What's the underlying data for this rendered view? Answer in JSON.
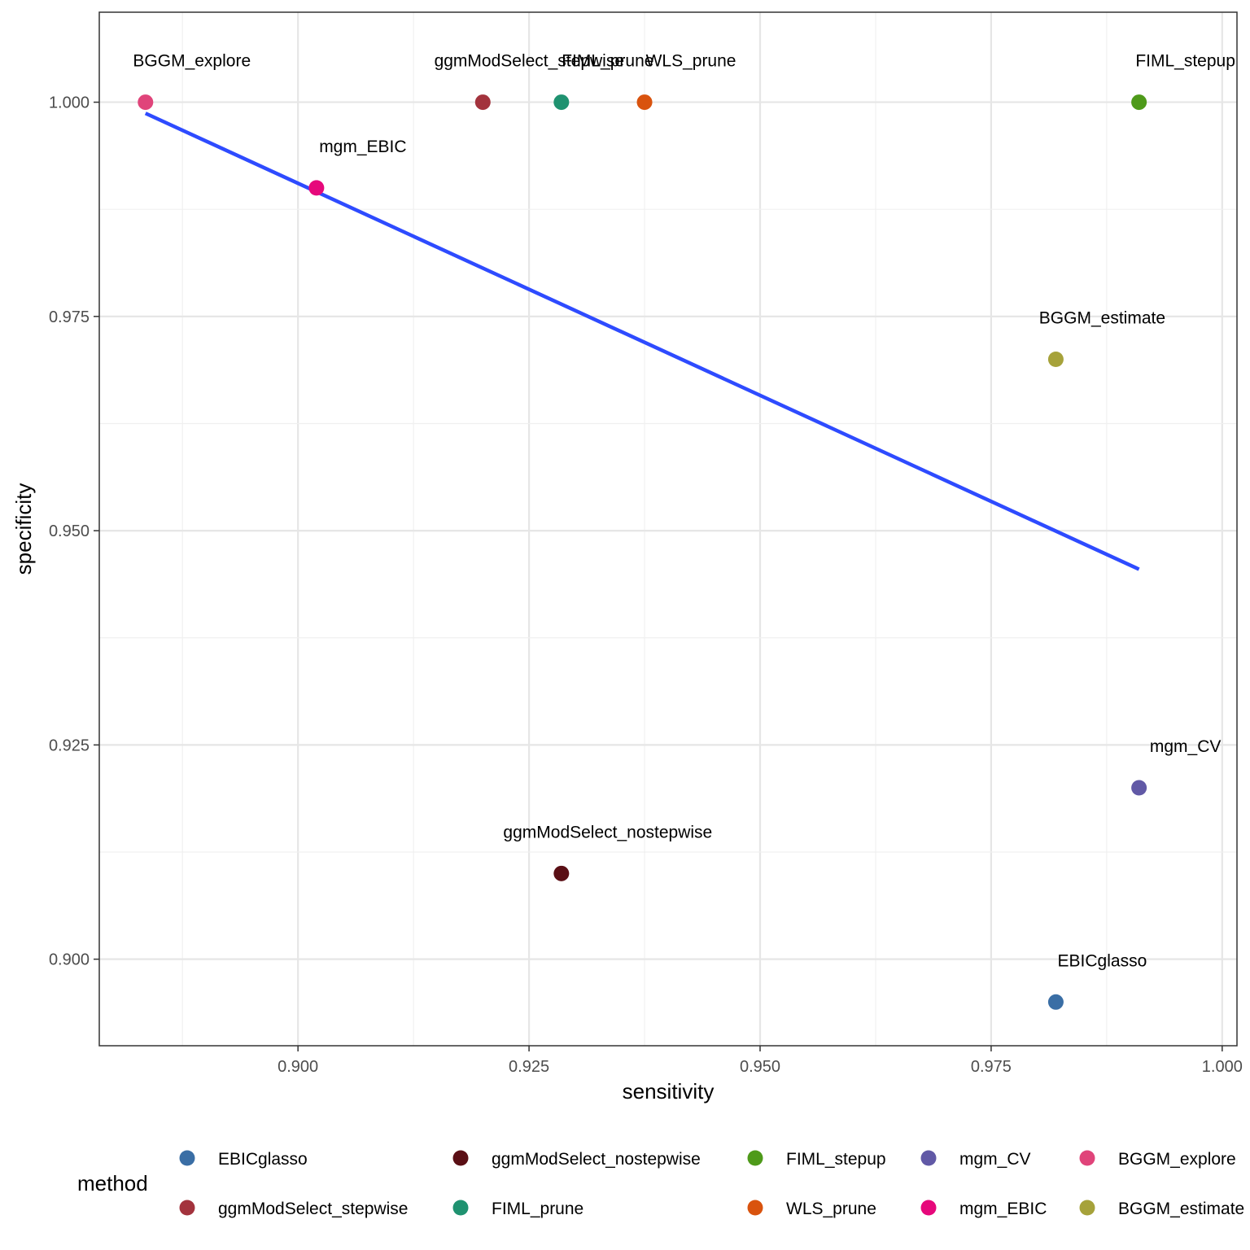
{
  "chart_data": {
    "type": "scatter",
    "xlabel": "sensitivity",
    "ylabel": "specificity",
    "xlim": [
      0.8785,
      1.0016
    ],
    "ylim": [
      0.8899,
      1.0105
    ],
    "x_ticks": [
      "0.900",
      "0.925",
      "0.950",
      "0.975",
      "1.000"
    ],
    "y_ticks": [
      "0.900",
      "0.925",
      "0.950",
      "0.975",
      "1.000"
    ],
    "grid": true,
    "legend_title": "method",
    "legend_position": "bottom",
    "points": [
      {
        "label": "EBICglasso",
        "x": 0.982,
        "y": 0.895,
        "color": "#3a6ea5"
      },
      {
        "label": "ggmModSelect_nostepwise",
        "x": 0.9285,
        "y": 0.91,
        "color": "#5a0f15"
      },
      {
        "label": "FIML_stepup",
        "x": 0.991,
        "y": 1.0,
        "color": "#4e9a1a"
      },
      {
        "label": "mgm_CV",
        "x": 0.991,
        "y": 0.92,
        "color": "#6159a6"
      },
      {
        "label": "BGGM_explore",
        "x": 0.8835,
        "y": 1.0,
        "color": "#e0447a"
      },
      {
        "label": "ggmModSelect_stepwise",
        "x": 0.92,
        "y": 1.0,
        "color": "#a3333d"
      },
      {
        "label": "FIML_prune",
        "x": 0.9285,
        "y": 1.0,
        "color": "#1f9270"
      },
      {
        "label": "WLS_prune",
        "x": 0.9375,
        "y": 1.0,
        "color": "#d9530e"
      },
      {
        "label": "mgm_EBIC",
        "x": 0.902,
        "y": 0.99,
        "color": "#e6087b"
      },
      {
        "label": "BGGM_estimate",
        "x": 0.982,
        "y": 0.97,
        "color": "#a6a23a"
      }
    ],
    "trend_line": {
      "x1": 0.8835,
      "y1": 0.9987,
      "x2": 0.991,
      "y2": 0.9455,
      "color": "#2e4bff"
    }
  }
}
